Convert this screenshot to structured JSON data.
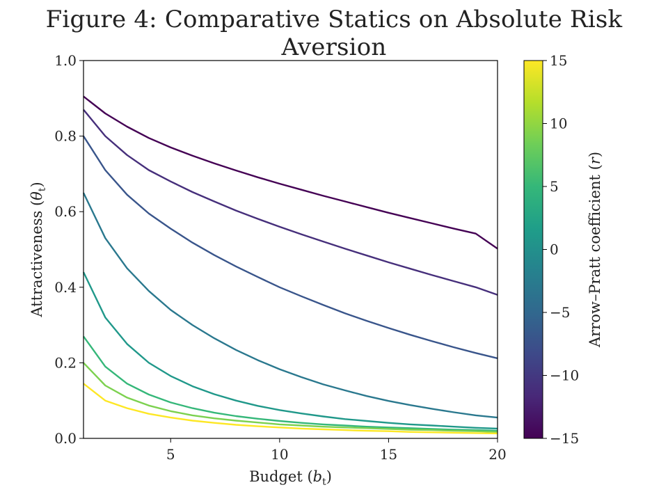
{
  "chart_data": {
    "type": "line",
    "title": "Figure 4: Comparative Statics on Absolute Risk Aversion",
    "xlabel": "Budget (",
    "xlabel_symbol": "b",
    "xlabel_sub": "t",
    "ylabel": "Attractiveness (",
    "ylabel_symbol": "θ",
    "ylabel_sub": "t",
    "xlim": [
      1,
      20
    ],
    "ylim": [
      0.0,
      1.0
    ],
    "xticks": [
      5,
      10,
      15,
      20
    ],
    "xtick_labels": [
      "5",
      "10",
      "15",
      "20"
    ],
    "yticks": [
      0.0,
      0.2,
      0.4,
      0.6,
      0.8,
      1.0
    ],
    "ytick_labels": [
      "0.0",
      "0.2",
      "0.4",
      "0.6",
      "0.8",
      "1.0"
    ],
    "colormap": "viridis",
    "colorbar": {
      "label": "Arrow–Pratt coefficient (",
      "label_symbol": "r",
      "range": [
        -15,
        15
      ],
      "ticks": [
        15,
        10,
        5,
        0,
        -5,
        -10,
        -15
      ],
      "tick_labels": [
        "15",
        "10",
        "5",
        "0",
        "−5",
        "−10",
        "−15"
      ],
      "colors": [
        "#440154",
        "#482878",
        "#3e4989",
        "#31688e",
        "#26828e",
        "#1f9e89",
        "#35b779",
        "#6ece58",
        "#b5de2b",
        "#fde725"
      ]
    },
    "x": [
      1,
      2,
      3,
      4,
      5,
      6,
      7,
      8,
      9,
      10,
      11,
      12,
      13,
      14,
      15,
      16,
      17,
      18,
      19,
      20
    ],
    "series": [
      {
        "r": -15,
        "values": [
          0.905,
          0.86,
          0.825,
          0.795,
          0.77,
          0.748,
          0.728,
          0.709,
          0.691,
          0.674,
          0.658,
          0.642,
          0.627,
          0.612,
          0.597,
          0.583,
          0.569,
          0.555,
          0.542,
          0.502
        ]
      },
      {
        "r": -11,
        "values": [
          0.87,
          0.8,
          0.75,
          0.71,
          0.68,
          0.652,
          0.627,
          0.603,
          0.581,
          0.56,
          0.54,
          0.521,
          0.502,
          0.484,
          0.466,
          0.449,
          0.432,
          0.416,
          0.4,
          0.38
        ]
      },
      {
        "r": -7,
        "values": [
          0.8,
          0.71,
          0.645,
          0.595,
          0.555,
          0.518,
          0.485,
          0.455,
          0.427,
          0.4,
          0.376,
          0.353,
          0.331,
          0.311,
          0.292,
          0.274,
          0.257,
          0.241,
          0.226,
          0.212
        ]
      },
      {
        "r": -3,
        "values": [
          0.65,
          0.53,
          0.45,
          0.39,
          0.34,
          0.3,
          0.265,
          0.234,
          0.207,
          0.183,
          0.162,
          0.143,
          0.127,
          0.112,
          0.099,
          0.088,
          0.078,
          0.069,
          0.061,
          0.055
        ]
      },
      {
        "r": 1,
        "values": [
          0.44,
          0.32,
          0.25,
          0.2,
          0.165,
          0.138,
          0.117,
          0.1,
          0.086,
          0.075,
          0.066,
          0.058,
          0.051,
          0.046,
          0.041,
          0.037,
          0.034,
          0.031,
          0.028,
          0.026
        ]
      },
      {
        "r": 5,
        "values": [
          0.27,
          0.19,
          0.145,
          0.116,
          0.095,
          0.08,
          0.068,
          0.059,
          0.052,
          0.046,
          0.041,
          0.037,
          0.034,
          0.031,
          0.029,
          0.027,
          0.025,
          0.023,
          0.022,
          0.02
        ]
      },
      {
        "r": 9,
        "values": [
          0.2,
          0.14,
          0.108,
          0.087,
          0.072,
          0.061,
          0.053,
          0.047,
          0.042,
          0.037,
          0.034,
          0.031,
          0.029,
          0.027,
          0.025,
          0.023,
          0.022,
          0.02,
          0.019,
          0.017
        ]
      },
      {
        "r": 15,
        "values": [
          0.145,
          0.1,
          0.08,
          0.065,
          0.055,
          0.047,
          0.041,
          0.036,
          0.032,
          0.029,
          0.026,
          0.024,
          0.022,
          0.02,
          0.019,
          0.017,
          0.016,
          0.015,
          0.014,
          0.013
        ]
      }
    ]
  }
}
